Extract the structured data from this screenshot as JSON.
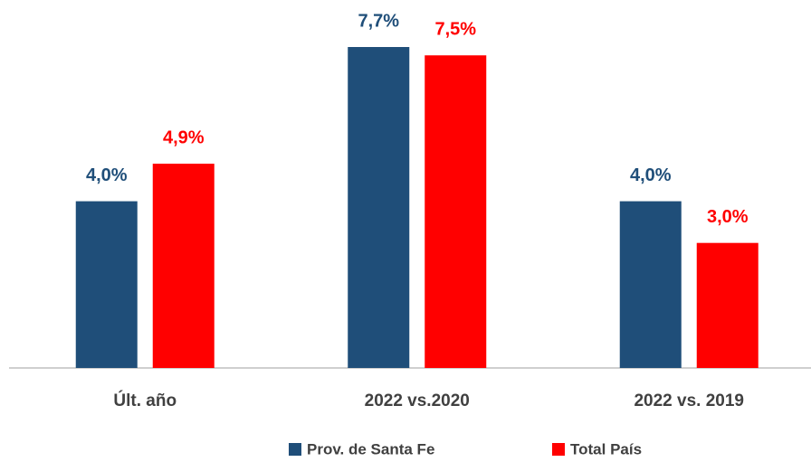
{
  "chart_data": {
    "type": "bar",
    "categories": [
      "Últ. año",
      "2022 vs.2020",
      "2022 vs. 2019"
    ],
    "series": [
      {
        "name": "Prov. de Santa Fe",
        "color": "#1F4E79",
        "values": [
          4.0,
          7.7,
          4.0
        ],
        "value_labels": [
          "4,0%",
          "7,7%",
          "4,0%"
        ]
      },
      {
        "name": "Total País",
        "color": "#FF0000",
        "values": [
          4.9,
          7.5,
          3.0
        ],
        "value_labels": [
          "4,9%",
          "7,5%",
          "3,0%"
        ]
      }
    ]
  }
}
